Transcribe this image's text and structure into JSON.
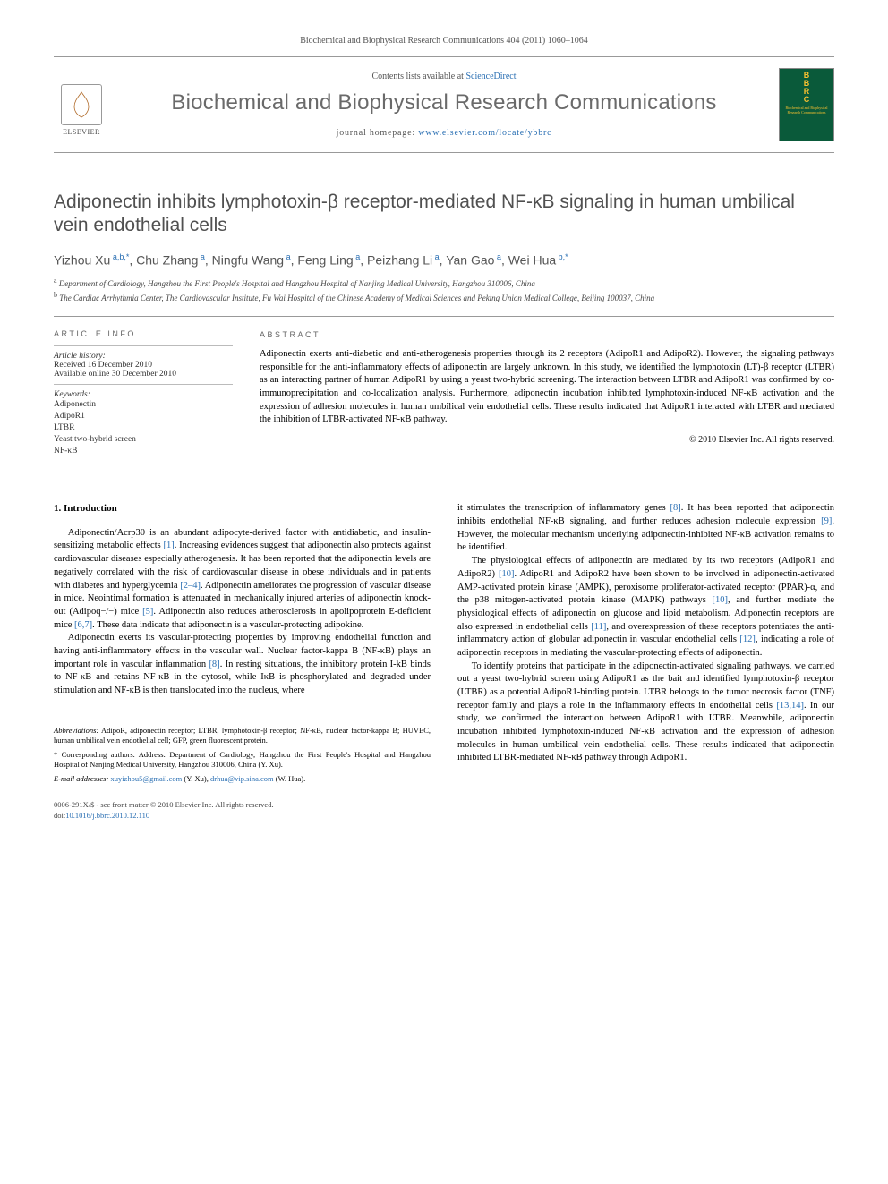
{
  "journal_ref": "Biochemical and Biophysical Research Communications 404 (2011) 1060–1064",
  "header": {
    "contents_prefix": "Contents lists available at ",
    "contents_link": "ScienceDirect",
    "journal_title": "Biochemical and Biophysical Research Communications",
    "homepage_prefix": "journal homepage: ",
    "homepage_url": "www.elsevier.com/locate/ybbrc",
    "elsevier_label": "ELSEVIER",
    "cover_acronym": "B\nB\nR\nC",
    "cover_sub": "Biochemical and Biophysical Research Communications"
  },
  "title": "Adiponectin inhibits lymphotoxin-β receptor-mediated NF-κB signaling in human umbilical vein endothelial cells",
  "authors_html": "Yizhou Xu<sup> a,b,*</sup>, Chu Zhang<sup> a</sup>, Ningfu Wang<sup> a</sup>, Feng Ling<sup> a</sup>, Peizhang Li<sup> a</sup>, Yan Gao<sup> a</sup>, Wei Hua<sup> b,*</sup>",
  "affiliations": {
    "a": "Department of Cardiology, Hangzhou the First People's Hospital and Hangzhou Hospital of Nanjing Medical University, Hangzhou 310006, China",
    "b": "The Cardiac Arrhythmia Center, The Cardiovascular Institute, Fu Wai Hospital of the Chinese Academy of Medical Sciences and Peking Union Medical College, Beijing 100037, China"
  },
  "article_info": {
    "label": "ARTICLE INFO",
    "history_label": "Article history:",
    "received": "Received 16 December 2010",
    "online": "Available online 30 December 2010",
    "keywords_label": "Keywords:",
    "keywords": [
      "Adiponectin",
      "AdipoR1",
      "LTBR",
      "Yeast two-hybrid screen",
      "NF-κB"
    ]
  },
  "abstract": {
    "label": "ABSTRACT",
    "text": "Adiponectin exerts anti-diabetic and anti-atherogenesis properties through its 2 receptors (AdipoR1 and AdipoR2). However, the signaling pathways responsible for the anti-inflammatory effects of adiponectin are largely unknown. In this study, we identified the lymphotoxin (LT)-β receptor (LTBR) as an interacting partner of human AdipoR1 by using a yeast two-hybrid screening. The interaction between LTBR and AdipoR1 was confirmed by co-immunoprecipitation and co-localization analysis. Furthermore, adiponectin incubation inhibited lymphotoxin-induced NF-κB activation and the expression of adhesion molecules in human umbilical vein endothelial cells. These results indicated that AdipoR1 interacted with LTBR and mediated the inhibition of LTBR-activated NF-κB pathway.",
    "copyright": "© 2010 Elsevier Inc. All rights reserved."
  },
  "intro_heading": "1. Introduction",
  "col1": {
    "p1": "Adiponectin/Acrp30 is an abundant adipocyte-derived factor with antidiabetic, and insulin-sensitizing metabolic effects [1]. Increasing evidences suggest that adiponectin also protects against cardiovascular diseases especially atherogenesis. It has been reported that the adiponectin levels are negatively correlated with the risk of cardiovascular disease in obese individuals and in patients with diabetes and hyperglycemia [2–4]. Adiponectin ameliorates the progression of vascular disease in mice. Neointimal formation is attenuated in mechanically injured arteries of adiponectin knock-out (Adipoq−/−) mice [5]. Adiponectin also reduces atherosclerosis in apolipoprotein E-deficient mice [6,7]. These data indicate that adiponectin is a vascular-protecting adipokine.",
    "p2": "Adiponectin exerts its vascular-protecting properties by improving endothelial function and having anti-inflammatory effects in the vascular wall. Nuclear factor-kappa B (NF-κB) plays an important role in vascular inflammation [8]. In resting situations, the inhibitory protein I-kB binds to NF-κB and retains NF-κB in the cytosol, while IκB is phosphorylated and degraded under stimulation and NF-κB is then translocated into the nucleus, where"
  },
  "col2": {
    "p1": "it stimulates the transcription of inflammatory genes [8]. It has been reported that adiponectin inhibits endothelial NF-κB signaling, and further reduces adhesion molecule expression [9]. However, the molecular mechanism underlying adiponectin-inhibited NF-κB activation remains to be identified.",
    "p2": "The physiological effects of adiponectin are mediated by its two receptors (AdipoR1 and AdipoR2) [10]. AdipoR1 and AdipoR2 have been shown to be involved in adiponectin-activated AMP-activated protein kinase (AMPK), peroxisome proliferator-activated receptor (PPAR)-α, and the p38 mitogen-activated protein kinase (MAPK) pathways [10], and further mediate the physiological effects of adiponectin on glucose and lipid metabolism. Adiponectin receptors are also expressed in endothelial cells [11], and overexpression of these receptors potentiates the anti-inflammatory action of globular adiponectin in vascular endothelial cells [12], indicating a role of adiponectin receptors in mediating the vascular-protecting effects of adiponectin.",
    "p3": "To identify proteins that participate in the adiponectin-activated signaling pathways, we carried out a yeast two-hybrid screen using AdipoR1 as the bait and identified lymphotoxin-β receptor (LTBR) as a potential AdipoR1-binding protein. LTBR belongs to the tumor necrosis factor (TNF) receptor family and plays a role in the inflammatory effects in endothelial cells [13,14]. In our study, we confirmed the interaction between AdipoR1 with LTBR. Meanwhile, adiponectin incubation inhibited lymphotoxin-induced NF-κB activation and the expression of adhesion molecules in human umbilical vein endothelial cells. These results indicated that adiponectin inhibited LTBR-mediated NF-κB pathway through AdipoR1."
  },
  "footnotes": {
    "abbr_label": "Abbreviations:",
    "abbr": "AdipoR, adiponectin receptor; LTBR, lymphotoxin-β receptor; NF-κB, nuclear factor-kappa B; HUVEC, human umbilical vein endothelial cell; GFP, green fluorescent protein.",
    "corr": "* Corresponding authors. Address: Department of Cardiology, Hangzhou the First People's Hospital and Hangzhou Hospital of Nanjing Medical University, Hangzhou 310006, China (Y. Xu).",
    "email_label": "E-mail addresses:",
    "email1": "xuyizhou5@gmail.com",
    "email1_who": "(Y. Xu),",
    "email2": "drhua@vip.sina.com",
    "email2_who": "(W. Hua)."
  },
  "footer": {
    "line1": "0006-291X/$ - see front matter © 2010 Elsevier Inc. All rights reserved.",
    "doi_prefix": "doi:",
    "doi": "10.1016/j.bbrc.2010.12.110"
  }
}
